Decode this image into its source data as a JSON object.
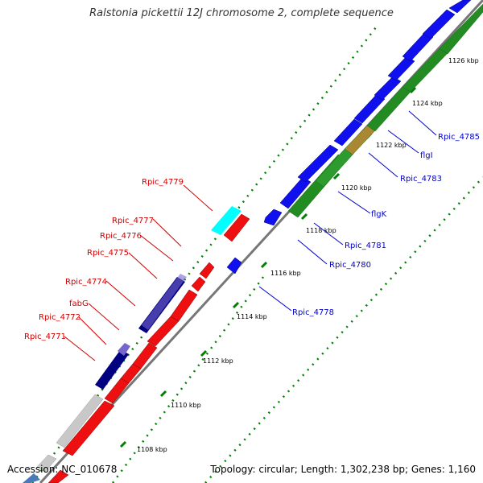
{
  "title": "Ralstonia pickettii 12J chromosome 2, complete sequence",
  "footer": {
    "accession": "Accession: NC_010678",
    "summary": "Topology: circular; Length: 1,302,238 bp; Genes: 1,160"
  },
  "colors": {
    "forward_cds": "#0000ee",
    "reverse_cds": "#ee0000",
    "forward_gene": "#228b22",
    "reverse_gene": "#aaaaaa",
    "dark_feature": "#000080",
    "light_feature": "#7766cc",
    "cyan_feature": "#00ffff",
    "olive_feature": "#aa8833",
    "ticks": "#008000",
    "backbone": "#777777"
  },
  "ticks": [
    "1108 kbp",
    "1110 kbp",
    "1112 kbp",
    "1114 kbp",
    "1116 kbp",
    "1118 kbp",
    "1120 kbp",
    "1122 kbp",
    "1124 kbp",
    "1126 kbp"
  ],
  "gene_labels_left": [
    "Rpic_4779",
    "Rpic_4777",
    "Rpic_4776",
    "Rpic_4775",
    "Rpic_4774",
    "fabG",
    "Rpic_4772",
    "Rpic_4771"
  ],
  "gene_labels_right": [
    "Rpic_4785",
    "flgI",
    "Rpic_4783",
    "flgK",
    "Rpic_4781",
    "Rpic_4780",
    "Rpic_4778"
  ]
}
